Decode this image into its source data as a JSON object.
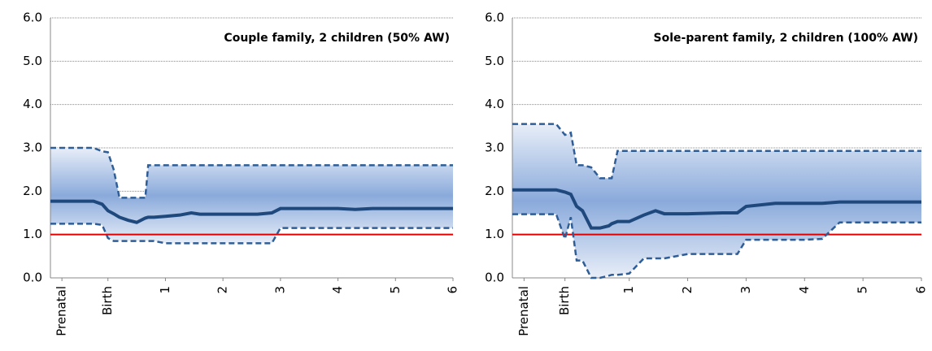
{
  "chart_data": [
    {
      "type": "line",
      "title": "Couple family, 2 children (50% AW)",
      "x": [
        -1,
        -0.25,
        -0.1,
        0,
        0.1,
        0.2,
        0.35,
        0.5,
        0.65,
        0.7,
        0.8,
        1,
        1.25,
        1.45,
        1.6,
        2,
        2.6,
        2.85,
        3,
        3.5,
        4,
        4.3,
        4.6,
        6
      ],
      "series": [
        {
          "color": "#95b3d7",
          "dash": true,
          "values": [
            3,
            3,
            2.92,
            2.9,
            2.5,
            1.85,
            1.85,
            1.85,
            1.85,
            2.6,
            2.6,
            2.6,
            2.6,
            2.6,
            2.6,
            2.6,
            2.6,
            2.6,
            2.6,
            2.6,
            2.6,
            2.6,
            2.6,
            2.6
          ]
        },
        {
          "color": "#1f497d",
          "dash": false,
          "values": [
            1.77,
            1.77,
            1.7,
            1.55,
            1.48,
            1.4,
            1.33,
            1.28,
            1.38,
            1.4,
            1.4,
            1.42,
            1.45,
            1.5,
            1.47,
            1.47,
            1.47,
            1.5,
            1.6,
            1.6,
            1.6,
            1.58,
            1.6,
            1.6
          ]
        },
        {
          "color": "#95b3d7",
          "dash": true,
          "values": [
            1.25,
            1.25,
            1.22,
            0.92,
            0.85,
            0.85,
            0.85,
            0.85,
            0.85,
            0.85,
            0.85,
            0.8,
            0.8,
            0.8,
            0.8,
            0.8,
            0.8,
            0.8,
            1.15,
            1.15,
            1.15,
            1.15,
            1.15,
            1.15
          ]
        }
      ],
      "band": true,
      "reference_line": {
        "value": 1,
        "color": "#e00000"
      },
      "xlim": [
        -1,
        6
      ],
      "xticks": [
        {
          "value": -0.8,
          "label": "Prenatal"
        },
        {
          "value": 0,
          "label": "Birth"
        },
        1,
        2,
        3,
        4,
        5,
        6
      ],
      "ylim": [
        0,
        6
      ],
      "yticks": [
        {
          "value": 0,
          "label": "0.0"
        },
        {
          "value": 1,
          "label": "1.0"
        },
        {
          "value": 2,
          "label": "2.0"
        },
        {
          "value": 3,
          "label": "3.0"
        },
        {
          "value": 4,
          "label": "4.0"
        },
        {
          "value": 5,
          "label": "5.0"
        },
        {
          "value": 6,
          "label": "6.0"
        }
      ],
      "grid": true
    },
    {
      "type": "line",
      "title": "Sole-parent family, 2 children (100% AW)",
      "x": [
        -1,
        -0.25,
        -0.1,
        0,
        0.1,
        0.2,
        0.35,
        0.5,
        0.65,
        0.7,
        0.8,
        1,
        1.25,
        1.45,
        1.6,
        2,
        2.6,
        2.85,
        3,
        3.5,
        4,
        4.3,
        4.6,
        6
      ],
      "series": [
        {
          "color": "#95b3d7",
          "dash": true,
          "values": [
            3.55,
            3.55,
            3.3,
            3.35,
            2.6,
            2.6,
            2.55,
            2.3,
            2.3,
            2.3,
            2.93,
            2.93,
            2.93,
            2.93,
            2.93,
            2.93,
            2.93,
            2.93,
            2.93,
            2.93,
            2.93,
            2.93,
            2.93,
            2.93
          ]
        },
        {
          "color": "#1f497d",
          "dash": false,
          "values": [
            2.03,
            2.03,
            1.98,
            1.93,
            1.65,
            1.55,
            1.15,
            1.15,
            1.2,
            1.25,
            1.3,
            1.3,
            1.45,
            1.55,
            1.48,
            1.48,
            1.5,
            1.5,
            1.65,
            1.72,
            1.72,
            1.72,
            1.75,
            1.75
          ]
        },
        {
          "color": "#95b3d7",
          "dash": true,
          "values": [
            1.47,
            1.47,
            0.9,
            1.4,
            0.4,
            0.4,
            0,
            0,
            0.05,
            0.07,
            0.07,
            0.1,
            0.45,
            0.45,
            0.45,
            0.55,
            0.55,
            0.55,
            0.88,
            0.88,
            0.88,
            0.9,
            1.28,
            1.28
          ]
        }
      ],
      "band": true,
      "reference_line": {
        "value": 1,
        "color": "#e00000"
      },
      "xlim": [
        -1,
        6
      ],
      "xticks": [
        {
          "value": -0.8,
          "label": "Prenatal"
        },
        {
          "value": -0.1,
          "label": "Birth"
        },
        1,
        2,
        3,
        4,
        5,
        6
      ],
      "ylim": [
        0,
        6
      ],
      "yticks": [
        {
          "value": 0,
          "label": "0.0"
        },
        {
          "value": 1,
          "label": "1.0"
        },
        {
          "value": 2,
          "label": "2.0"
        },
        {
          "value": 3,
          "label": "3.0"
        },
        {
          "value": 4,
          "label": "4.0"
        },
        {
          "value": 5,
          "label": "5.0"
        },
        {
          "value": 6,
          "label": "6.0"
        }
      ],
      "grid": true
    }
  ]
}
